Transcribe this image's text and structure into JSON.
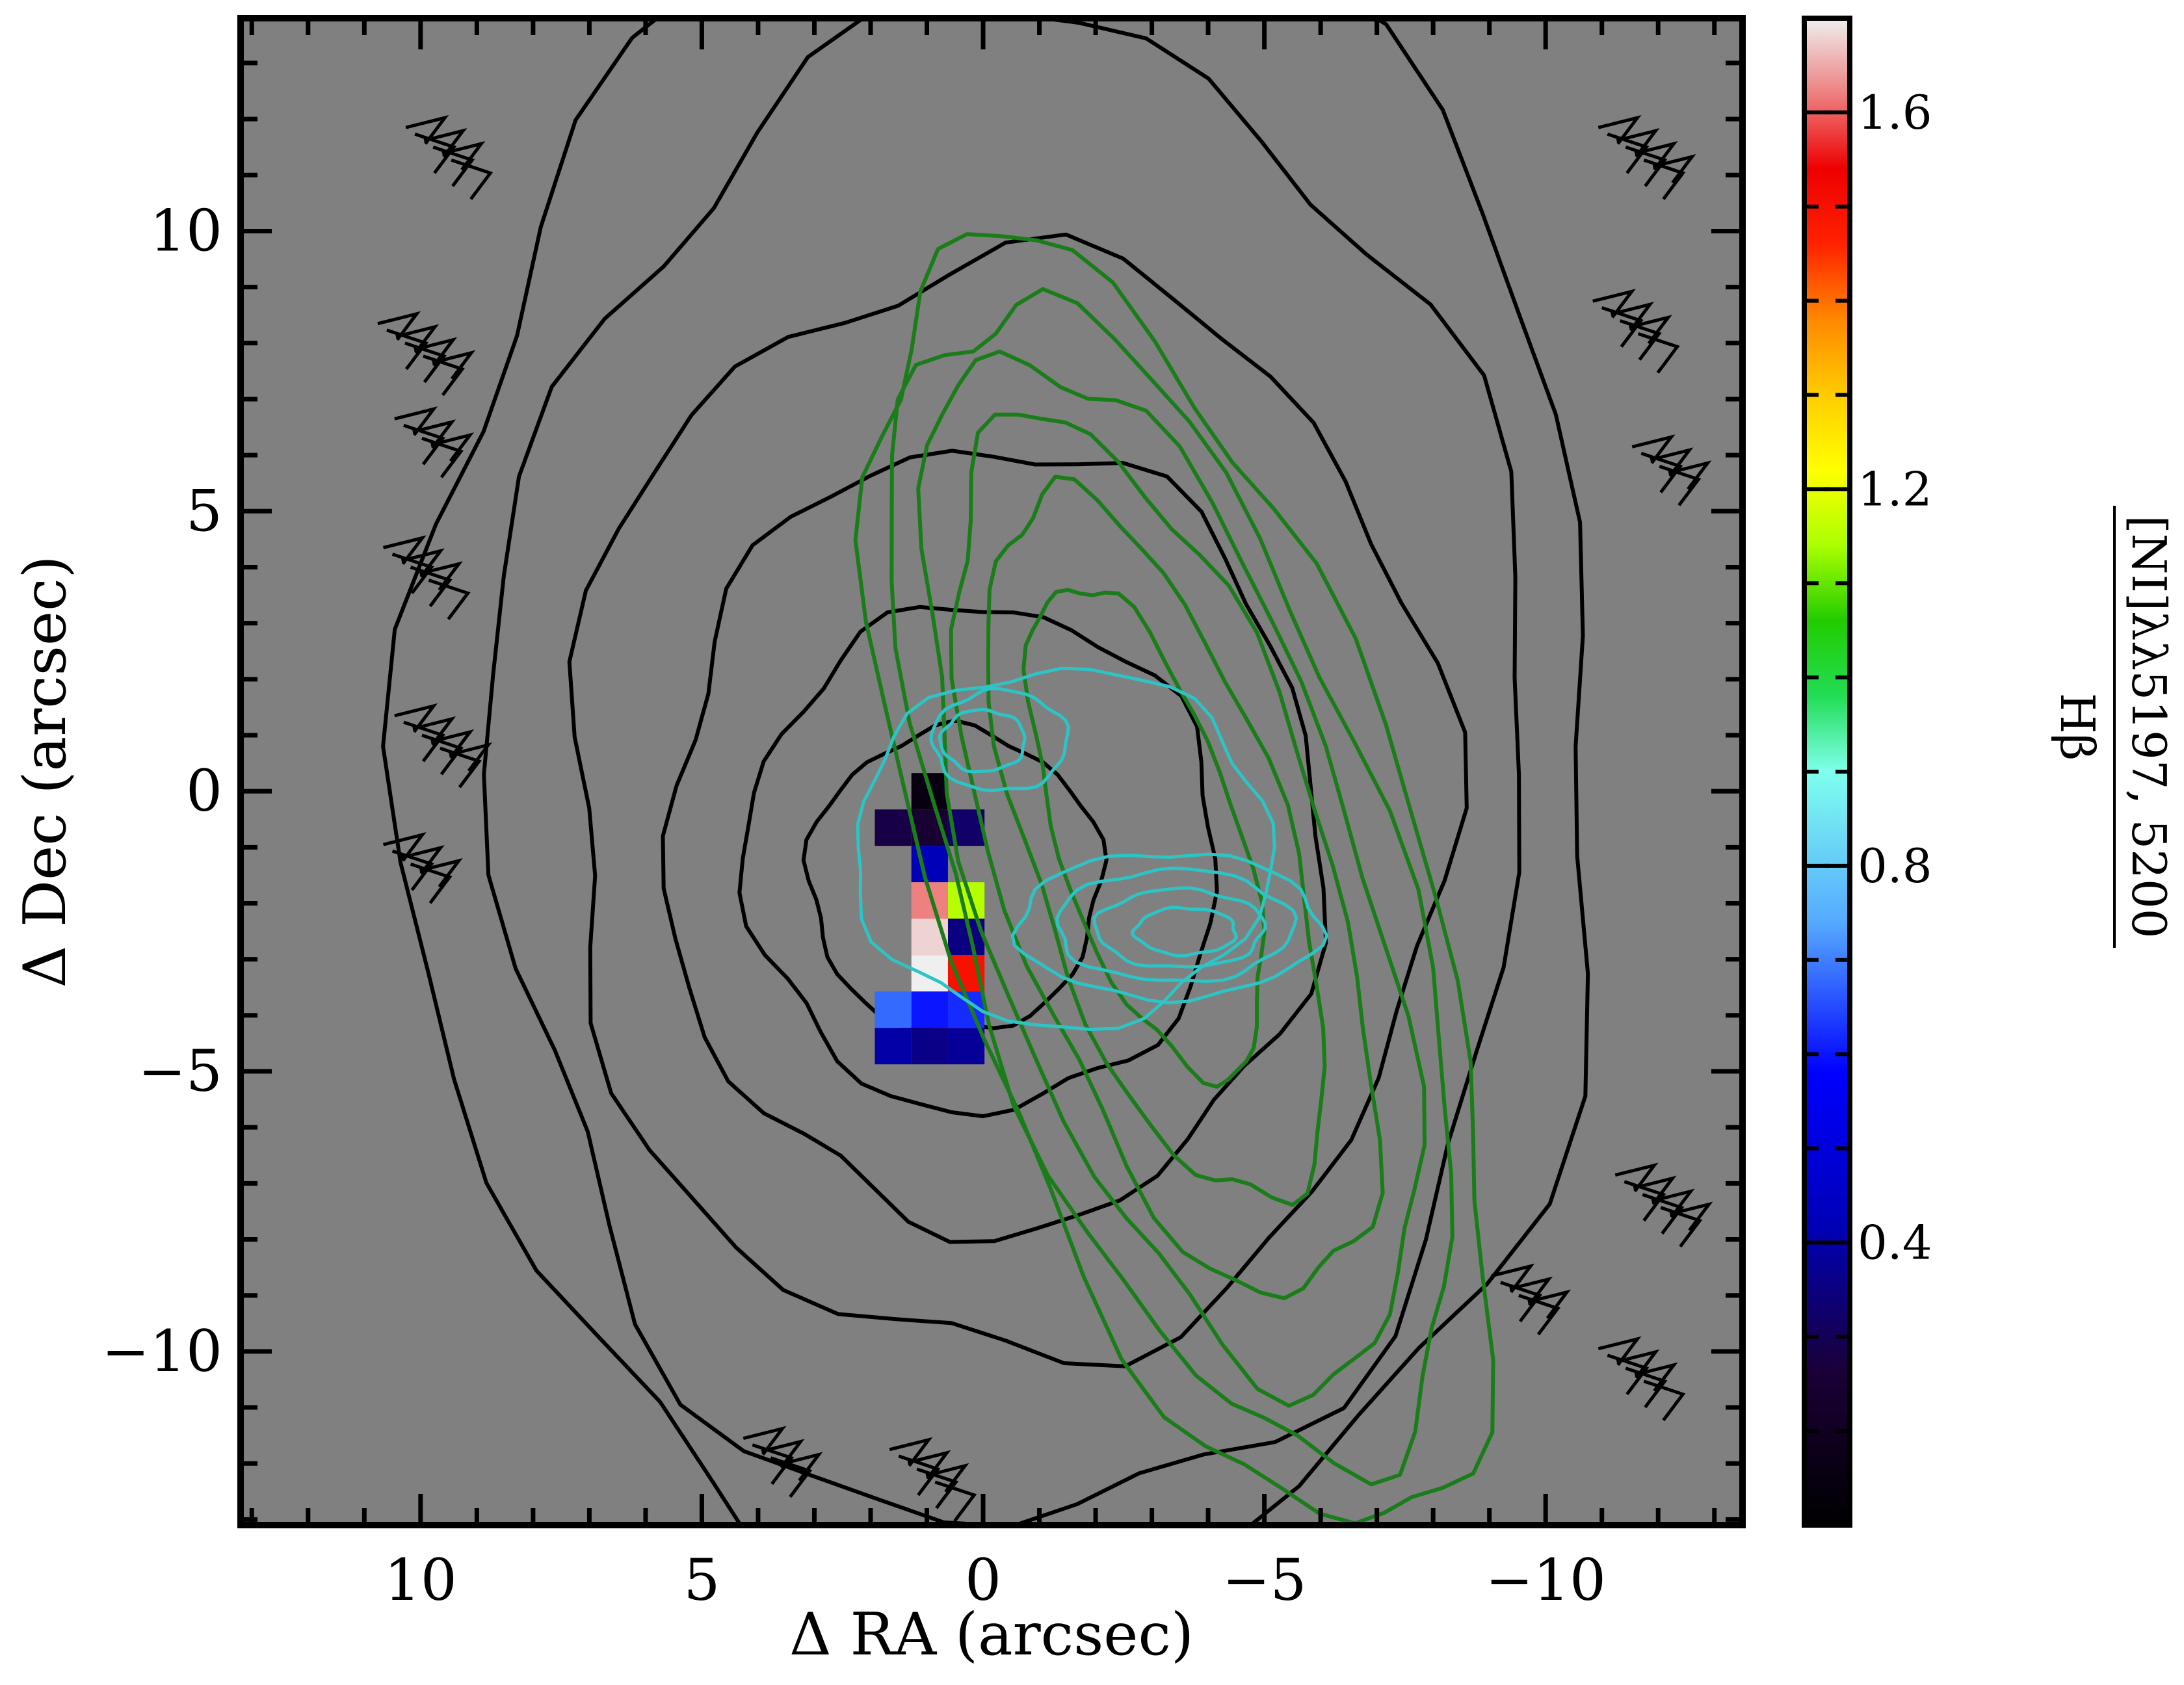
{
  "chart_data": {
    "type": "heatmap",
    "title": "",
    "xlabel": "Δ RA (arcsec)",
    "ylabel": "Δ Dec (arcsec)",
    "xlim": [
      13.2,
      -13.5
    ],
    "ylim": [
      -13.1,
      13.8
    ],
    "x_inverted": true,
    "xticks": [
      10,
      5,
      0,
      -5,
      -10
    ],
    "xtick_labels": [
      "10",
      "5",
      "0",
      "−5",
      "−10"
    ],
    "yticks": [
      10,
      5,
      0,
      -5,
      -10
    ],
    "ytick_labels": [
      "10",
      "5",
      "0",
      "−5",
      "−10"
    ],
    "background_color": "#808080",
    "colorbar": {
      "label_numerator": "[NI]λλ5197, 5200",
      "label_denominator": "Hβ",
      "vmin": 0.1,
      "vmax": 1.7,
      "ticks": [
        0.4,
        0.8,
        1.2,
        1.6
      ],
      "tick_labels": [
        "0.4",
        "0.8",
        "1.2",
        "1.6"
      ],
      "colormap": "nipy_spectral",
      "colormap_stops": [
        {
          "v": 0.0,
          "c": "#000000"
        },
        {
          "v": 0.1,
          "c": "#1a0036"
        },
        {
          "v": 0.2,
          "c": "#0000b8"
        },
        {
          "v": 0.3,
          "c": "#0000ff"
        },
        {
          "v": 0.4,
          "c": "#55aaff"
        },
        {
          "v": 0.5,
          "c": "#7fffee"
        },
        {
          "v": 0.55,
          "c": "#22dd55"
        },
        {
          "v": 0.6,
          "c": "#22cc00"
        },
        {
          "v": 0.65,
          "c": "#aaff00"
        },
        {
          "v": 0.7,
          "c": "#ffff00"
        },
        {
          "v": 0.75,
          "c": "#ffcc00"
        },
        {
          "v": 0.8,
          "c": "#ff8800"
        },
        {
          "v": 0.85,
          "c": "#ff2200"
        },
        {
          "v": 0.9,
          "c": "#ee0000"
        },
        {
          "v": 0.95,
          "c": "#ee8080"
        },
        {
          "v": 1.0,
          "c": "#efefef"
        }
      ]
    },
    "pixel_size_arcsec": 0.65,
    "pixels": [
      {
        "x": 0.95,
        "y": 0.0,
        "v": 0.15
      },
      {
        "x": 0.3,
        "y": -0.65,
        "v": 0.32
      },
      {
        "x": 0.95,
        "y": -0.65,
        "v": 0.25
      },
      {
        "x": 1.6,
        "y": -0.65,
        "v": 0.28
      },
      {
        "x": 0.95,
        "y": -1.3,
        "v": 0.42
      },
      {
        "x": 0.3,
        "y": -1.95,
        "v": 1.15
      },
      {
        "x": 0.95,
        "y": -1.95,
        "v": 1.62
      },
      {
        "x": 0.3,
        "y": -2.6,
        "v": 0.35
      },
      {
        "x": 0.95,
        "y": -2.6,
        "v": 1.68
      },
      {
        "x": 0.3,
        "y": -3.25,
        "v": 1.5
      },
      {
        "x": 0.95,
        "y": -3.25,
        "v": 1.72
      },
      {
        "x": 0.3,
        "y": -3.9,
        "v": 0.62
      },
      {
        "x": 0.95,
        "y": -3.9,
        "v": 0.6
      },
      {
        "x": 1.6,
        "y": -3.9,
        "v": 0.68
      },
      {
        "x": 0.3,
        "y": -4.55,
        "v": 0.38
      },
      {
        "x": 0.95,
        "y": -4.55,
        "v": 0.36
      },
      {
        "x": 1.6,
        "y": -4.55,
        "v": 0.4
      }
    ],
    "contour_sets": [
      {
        "name": "",
        "color": "#000000",
        "width": 6,
        "closed": true,
        "levels": [
          {
            "cx": 0.5,
            "cy": -1.6,
            "rx": 2.6,
            "ry": 2.7
          },
          {
            "cx": 0.0,
            "cy": -1.2,
            "rx": 4.2,
            "ry": 4.5
          },
          {
            "cx": -0.2,
            "cy": -0.8,
            "rx": 5.8,
            "ry": 7.0
          },
          {
            "cx": -0.4,
            "cy": -0.3,
            "rx": 7.8,
            "ry": 9.8
          },
          {
            "cx": -0.5,
            "cy": 0.3,
            "rx": 9.2,
            "ry": 13.5
          },
          {
            "cx": -0.4,
            "cy": 0.8,
            "rx": 10.6,
            "ry": 15.5
          }
        ]
      },
      {
        "name": "",
        "color": "#1a7d1a",
        "width": 6,
        "closed": true,
        "rotation_deg": -18,
        "levels": [
          {
            "cx": -2.9,
            "cy": -0.7,
            "rx": 1.6,
            "ry": 4.6
          },
          {
            "cx": -3.1,
            "cy": -1.0,
            "rx": 2.3,
            "ry": 6.6
          },
          {
            "cx": -3.2,
            "cy": -1.2,
            "rx": 2.9,
            "ry": 8.2
          },
          {
            "cx": -3.3,
            "cy": -1.4,
            "rx": 3.4,
            "ry": 9.6
          },
          {
            "cx": -3.4,
            "cy": -1.6,
            "rx": 3.9,
            "ry": 10.8
          },
          {
            "cx": -3.5,
            "cy": -1.7,
            "rx": 4.3,
            "ry": 12.0
          }
        ]
      },
      {
        "name": "",
        "color": "#2cc4c4",
        "width": 5,
        "closed": true,
        "levels": [
          {
            "cx": -0.3,
            "cy": 0.9,
            "rx": 1.2,
            "ry": 0.9
          },
          {
            "cx": 0.0,
            "cy": 0.9,
            "rx": 0.75,
            "ry": 0.55
          },
          {
            "cx": -3.3,
            "cy": -2.4,
            "rx": 2.7,
            "ry": 1.3
          },
          {
            "cx": -3.4,
            "cy": -2.4,
            "rx": 2.1,
            "ry": 1.0
          },
          {
            "cx": -3.5,
            "cy": -2.45,
            "rx": 1.5,
            "ry": 0.7
          },
          {
            "cx": -3.6,
            "cy": -2.5,
            "rx": 0.9,
            "ry": 0.42
          },
          {
            "cx": -1.4,
            "cy": -1.0,
            "rx": 3.7,
            "ry": 3.2
          }
        ]
      }
    ],
    "noise_fragments": [
      {
        "x": 10.0,
        "y": 6.3
      },
      {
        "x": 10.2,
        "y": 4.0
      },
      {
        "x": 10.0,
        "y": 1.0
      },
      {
        "x": 10.2,
        "y": -1.3
      },
      {
        "x": 9.8,
        "y": 11.5
      },
      {
        "x": 10.3,
        "y": 8.0
      },
      {
        "x": 3.8,
        "y": -11.9
      },
      {
        "x": 1.2,
        "y": -12.1
      },
      {
        "x": -11.7,
        "y": -7.2
      },
      {
        "x": -12.0,
        "y": 5.8
      },
      {
        "x": -11.3,
        "y": 8.4
      },
      {
        "x": -11.4,
        "y": 11.5
      },
      {
        "x": -9.5,
        "y": -9.0
      },
      {
        "x": -11.4,
        "y": -10.3
      }
    ]
  }
}
